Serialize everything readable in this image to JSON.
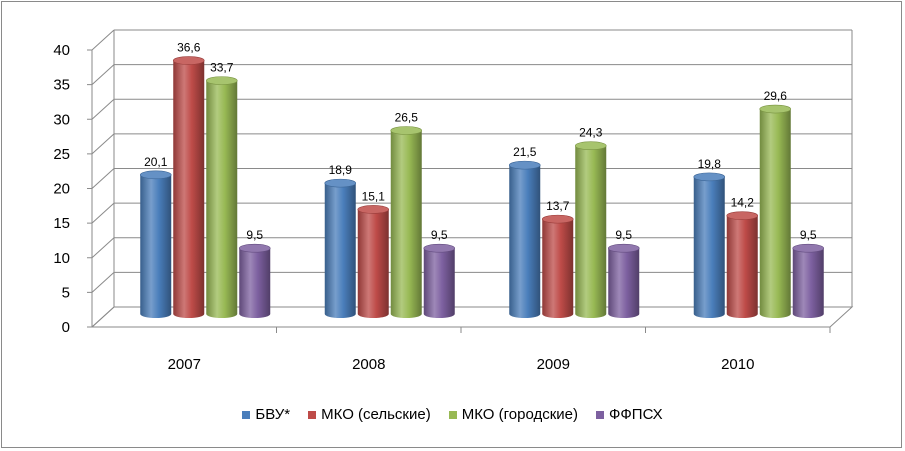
{
  "chart_data": {
    "type": "bar",
    "categories": [
      "2007",
      "2008",
      "2009",
      "2010"
    ],
    "series": [
      {
        "name": "БВУ*",
        "color": "#4a7ebb",
        "values": [
          20.1,
          18.9,
          21.5,
          19.8
        ],
        "labels": [
          "20,1",
          "18,9",
          "21,5",
          "19,8"
        ]
      },
      {
        "name": "МКО (сельские)",
        "color": "#be4b48",
        "values": [
          36.6,
          15.1,
          13.7,
          14.2
        ],
        "labels": [
          "36,6",
          "15,1",
          "13,7",
          "14,2"
        ]
      },
      {
        "name": "МКО (городские)",
        "color": "#98b954",
        "values": [
          33.7,
          26.5,
          24.3,
          29.6
        ],
        "labels": [
          "33,7",
          "26,5",
          "24,3",
          "29,6"
        ]
      },
      {
        "name": "ФФПСХ",
        "color": "#7d60a0",
        "values": [
          9.5,
          9.5,
          9.5,
          9.5
        ],
        "labels": [
          "9,5",
          "9,5",
          "9,5",
          "9,5"
        ]
      }
    ],
    "yticks": [
      "0",
      "5",
      "10",
      "15",
      "20",
      "25",
      "30",
      "35",
      "40"
    ],
    "ylim": [
      0,
      40
    ],
    "grid": true,
    "legend_position": "bottom",
    "style": "3d-cylinder"
  }
}
